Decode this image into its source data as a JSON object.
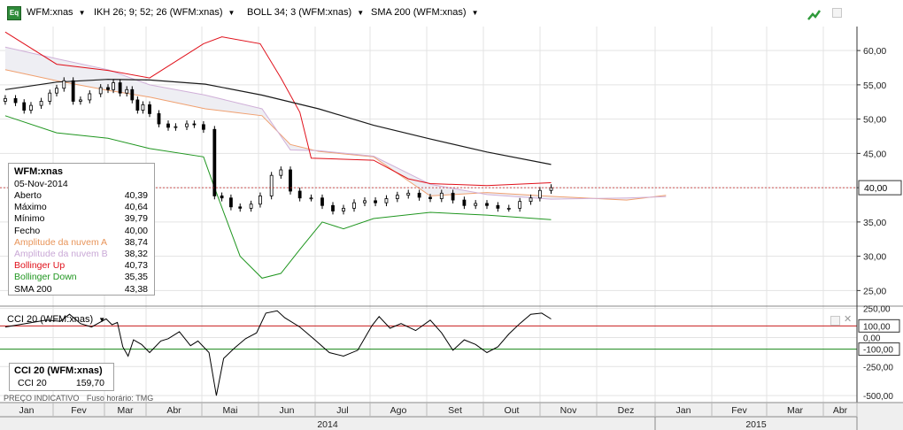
{
  "toolbar": {
    "badge": "Eq",
    "items": [
      {
        "label": "WFM:xnas"
      },
      {
        "label": "IKH 26; 9; 52; 26 (WFM:xnas)"
      },
      {
        "label": "BOLL 34; 3 (WFM:xnas)"
      },
      {
        "label": "SMA 200 (WFM:xnas)"
      }
    ],
    "icons": [
      "trend-icon",
      "maximize-icon"
    ]
  },
  "colors": {
    "candle_up": "#ffffff",
    "candle_down": "#000000",
    "bollinger_up": "#e0101a",
    "bollinger_down": "#209620",
    "cloud_a": "#f0a070",
    "cloud_b": "#d0b0d8",
    "cloud_fill": "#eeeef3",
    "sma": "#1a1a1a",
    "grid": "#e3e3e3",
    "price_line": "#c02020"
  },
  "info": {
    "title": "WFM:xnas",
    "date": "05-Nov-2014",
    "rows": [
      {
        "label": "Aberto",
        "value": "40,39",
        "color": "#000000"
      },
      {
        "label": "Máximo",
        "value": "40,64",
        "color": "#000000"
      },
      {
        "label": "Mínimo",
        "value": "39,79",
        "color": "#000000"
      },
      {
        "label": "Fecho",
        "value": "40,00",
        "color": "#000000"
      },
      {
        "label": "Amplitude da nuvem A",
        "value": "38,74",
        "color": "#e8955a"
      },
      {
        "label": "Amplitude da nuvem B",
        "value": "38,32",
        "color": "#c9a8d6"
      },
      {
        "label": "Bollinger Up",
        "value": "40,73",
        "color": "#e0101a"
      },
      {
        "label": "Bollinger Down",
        "value": "35,35",
        "color": "#209620"
      },
      {
        "label": "SMA 200",
        "value": "43,38",
        "color": "#000000"
      }
    ]
  },
  "cci": {
    "header": "CCI 20 (WFM:xnas)",
    "box_title": "CCI 20 (WFM:xnas)",
    "box_label": "CCI 20",
    "box_value": "159,70"
  },
  "footer": {
    "left": "PREÇO INDICATIVO",
    "right": "Fuso horário: TMG"
  },
  "chart_data": {
    "type": "candlestick",
    "price_axis": {
      "ylim": [
        23.5,
        63.5
      ],
      "ticks": [
        {
          "v": 25,
          "label": "25,00"
        },
        {
          "v": 30,
          "label": "30,00"
        },
        {
          "v": 35,
          "label": "35,00"
        },
        {
          "v": 40,
          "label": "40,00"
        },
        {
          "v": 45,
          "label": "45,00"
        },
        {
          "v": 50,
          "label": "50,00"
        },
        {
          "v": 55,
          "label": "55,00"
        },
        {
          "v": 60,
          "label": "60,00"
        }
      ],
      "last_price": {
        "v": 40.0,
        "label": "40,00"
      }
    },
    "cci_axis": {
      "ylim": [
        -560,
        270
      ],
      "ticks": [
        {
          "v": 250,
          "label": "250,00"
        },
        {
          "v": 100,
          "label": "100,00"
        },
        {
          "v": 0,
          "label": "0,00"
        },
        {
          "v": -100,
          "label": "-100,00"
        },
        {
          "v": -250,
          "label": "-250,00"
        },
        {
          "v": -500,
          "label": "-500,00"
        }
      ],
      "boxed": [
        100,
        -100
      ],
      "levels": [
        {
          "v": 100,
          "color": "#cc2020"
        },
        {
          "v": -100,
          "color": "#1a8a1a"
        }
      ]
    },
    "time_axis": {
      "months": [
        {
          "label": "Jan",
          "t": 0
        },
        {
          "label": "Fev",
          "t": 1
        },
        {
          "label": "Mar",
          "t": 2
        },
        {
          "label": "Abr",
          "t": 3
        },
        {
          "label": "Mai",
          "t": 4
        },
        {
          "label": "Jun",
          "t": 5
        },
        {
          "label": "Jul",
          "t": 6
        },
        {
          "label": "Ago",
          "t": 7
        },
        {
          "label": "Set",
          "t": 8
        },
        {
          "label": "Out",
          "t": 9
        },
        {
          "label": "Nov",
          "t": 10
        },
        {
          "label": "Dez",
          "t": 11
        },
        {
          "label": "Jan",
          "t": 12
        },
        {
          "label": "Fev",
          "t": 13
        },
        {
          "label": "Mar",
          "t": 14
        },
        {
          "label": "Abr",
          "t": 15
        }
      ],
      "years": [
        {
          "label": "2014",
          "t0": 0,
          "t1": 12
        },
        {
          "label": "2015",
          "t0": 12,
          "t1": 16
        }
      ]
    },
    "price": [
      [
        "2014-01-02",
        53.0
      ],
      [
        "2014-01-08",
        52.4
      ],
      [
        "2014-01-13",
        51.3
      ],
      [
        "2014-01-17",
        52.0
      ],
      [
        "2014-01-23",
        52.6
      ],
      [
        "2014-01-28",
        53.8
      ],
      [
        "2014-02-01",
        54.5
      ],
      [
        "2014-02-05",
        55.6
      ],
      [
        "2014-02-10",
        52.6
      ],
      [
        "2014-02-14",
        52.8
      ],
      [
        "2014-02-19",
        53.7
      ],
      [
        "2014-02-25",
        54.6
      ],
      [
        "2014-03-01",
        54.3
      ],
      [
        "2014-03-05",
        55.3
      ],
      [
        "2014-03-10",
        53.8
      ],
      [
        "2014-03-15",
        54.3
      ],
      [
        "2014-03-19",
        52.8
      ],
      [
        "2014-03-23",
        51.3
      ],
      [
        "2014-03-27",
        52.1
      ],
      [
        "2014-04-01",
        50.8
      ],
      [
        "2014-04-06",
        49.3
      ],
      [
        "2014-04-11",
        48.8
      ],
      [
        "2014-04-15",
        48.9
      ],
      [
        "2014-04-21",
        49.3
      ],
      [
        "2014-04-25",
        49.2
      ],
      [
        "2014-04-30",
        48.5
      ],
      [
        "2014-05-06",
        38.8
      ],
      [
        "2014-05-10",
        38.5
      ],
      [
        "2014-05-15",
        37.2
      ],
      [
        "2014-05-20",
        37.0
      ],
      [
        "2014-05-26",
        37.6
      ],
      [
        "2014-05-31",
        38.8
      ],
      [
        "2014-06-06",
        41.8
      ],
      [
        "2014-06-11",
        42.6
      ],
      [
        "2014-06-16",
        39.5
      ],
      [
        "2014-06-21",
        38.5
      ],
      [
        "2014-06-27",
        38.5
      ],
      [
        "2014-07-03",
        37.4
      ],
      [
        "2014-07-09",
        36.6
      ],
      [
        "2014-07-15",
        37.0
      ],
      [
        "2014-07-21",
        37.8
      ],
      [
        "2014-07-27",
        38.1
      ],
      [
        "2014-08-02",
        37.8
      ],
      [
        "2014-08-08",
        38.4
      ],
      [
        "2014-08-14",
        38.9
      ],
      [
        "2014-08-20",
        39.2
      ],
      [
        "2014-08-26",
        38.6
      ],
      [
        "2014-09-01",
        38.4
      ],
      [
        "2014-09-07",
        39.2
      ],
      [
        "2014-09-13",
        38.2
      ],
      [
        "2014-09-19",
        37.4
      ],
      [
        "2014-09-25",
        37.7
      ],
      [
        "2014-10-01",
        37.4
      ],
      [
        "2014-10-07",
        37.0
      ],
      [
        "2014-10-13",
        37.0
      ],
      [
        "2014-10-19",
        38.0
      ],
      [
        "2014-10-25",
        38.5
      ],
      [
        "2014-10-30",
        39.6
      ],
      [
        "2014-11-05",
        40.0
      ]
    ],
    "sma200": [
      [
        "2014-01-02",
        54.3
      ],
      [
        "2014-02-01",
        55.4
      ],
      [
        "2014-03-01",
        55.8
      ],
      [
        "2014-04-01",
        55.7
      ],
      [
        "2014-05-01",
        55.1
      ],
      [
        "2014-06-01",
        53.5
      ],
      [
        "2014-07-01",
        51.5
      ],
      [
        "2014-08-01",
        49.1
      ],
      [
        "2014-09-01",
        47.1
      ],
      [
        "2014-10-01",
        45.2
      ],
      [
        "2014-11-05",
        43.38
      ]
    ],
    "bollinger_up": [
      [
        "2014-01-02",
        62.7
      ],
      [
        "2014-02-01",
        58.0
      ],
      [
        "2014-03-01",
        57.1
      ],
      [
        "2014-04-01",
        56.0
      ],
      [
        "2014-04-30",
        61.0
      ],
      [
        "2014-05-10",
        62.0
      ],
      [
        "2014-05-31",
        61.0
      ],
      [
        "2014-06-11",
        56.0
      ],
      [
        "2014-06-21",
        51.0
      ],
      [
        "2014-06-27",
        44.3
      ],
      [
        "2014-08-01",
        44.0
      ],
      [
        "2014-08-20",
        41.3
      ],
      [
        "2014-09-01",
        40.6
      ],
      [
        "2014-10-01",
        40.3
      ],
      [
        "2014-11-05",
        40.73
      ]
    ],
    "bollinger_down": [
      [
        "2014-01-02",
        50.5
      ],
      [
        "2014-02-01",
        48.0
      ],
      [
        "2014-03-01",
        47.2
      ],
      [
        "2014-04-01",
        45.7
      ],
      [
        "2014-04-30",
        44.5
      ],
      [
        "2014-05-06",
        40.0
      ],
      [
        "2014-05-20",
        30.0
      ],
      [
        "2014-06-01",
        26.8
      ],
      [
        "2014-06-11",
        27.5
      ],
      [
        "2014-06-21",
        31.0
      ],
      [
        "2014-07-03",
        35.0
      ],
      [
        "2014-07-15",
        34.0
      ],
      [
        "2014-08-01",
        35.5
      ],
      [
        "2014-09-01",
        36.4
      ],
      [
        "2014-10-01",
        36.0
      ],
      [
        "2014-11-05",
        35.35
      ]
    ],
    "cloud_a": [
      [
        "2014-01-02",
        57.2
      ],
      [
        "2014-02-01",
        55.6
      ],
      [
        "2014-03-01",
        54.2
      ],
      [
        "2014-04-01",
        53.2
      ],
      [
        "2014-05-01",
        51.5
      ],
      [
        "2014-06-01",
        50.5
      ],
      [
        "2014-06-16",
        46.3
      ],
      [
        "2014-07-01",
        45.3
      ],
      [
        "2014-08-01",
        44.5
      ],
      [
        "2014-08-20",
        41.0
      ],
      [
        "2014-09-01",
        38.8
      ],
      [
        "2014-10-01",
        39.3
      ],
      [
        "2014-11-05",
        38.74
      ],
      [
        "2014-12-15",
        38.2
      ],
      [
        "2015-01-05",
        38.9
      ]
    ],
    "cloud_b": [
      [
        "2014-01-02",
        60.5
      ],
      [
        "2014-02-01",
        58.8
      ],
      [
        "2014-03-01",
        57.2
      ],
      [
        "2014-04-01",
        55.0
      ],
      [
        "2014-05-01",
        53.5
      ],
      [
        "2014-06-01",
        51.5
      ],
      [
        "2014-06-16",
        45.5
      ],
      [
        "2014-07-01",
        45.4
      ],
      [
        "2014-08-01",
        44.6
      ],
      [
        "2014-09-01",
        40.5
      ],
      [
        "2014-10-01",
        39.0
      ],
      [
        "2014-11-05",
        38.32
      ],
      [
        "2014-12-15",
        38.5
      ],
      [
        "2015-01-05",
        38.7
      ]
    ],
    "cci20": [
      [
        "2014-01-02",
        90
      ],
      [
        "2014-01-10",
        110
      ],
      [
        "2014-01-18",
        130
      ],
      [
        "2014-01-26",
        150
      ],
      [
        "2014-02-03",
        140
      ],
      [
        "2014-02-08",
        200
      ],
      [
        "2014-02-14",
        120
      ],
      [
        "2014-02-20",
        90
      ],
      [
        "2014-02-28",
        160
      ],
      [
        "2014-03-04",
        110
      ],
      [
        "2014-03-08",
        130
      ],
      [
        "2014-03-12",
        -80
      ],
      [
        "2014-03-16",
        -160
      ],
      [
        "2014-03-20",
        -20
      ],
      [
        "2014-03-26",
        -60
      ],
      [
        "2014-04-01",
        -130
      ],
      [
        "2014-04-07",
        -30
      ],
      [
        "2014-04-11",
        -10
      ],
      [
        "2014-04-17",
        50
      ],
      [
        "2014-04-23",
        -70
      ],
      [
        "2014-04-27",
        -30
      ],
      [
        "2014-05-03",
        -130
      ],
      [
        "2014-05-07",
        -500
      ],
      [
        "2014-05-11",
        -180
      ],
      [
        "2014-05-17",
        -90
      ],
      [
        "2014-05-23",
        -10
      ],
      [
        "2014-05-29",
        40
      ],
      [
        "2014-06-03",
        210
      ],
      [
        "2014-06-09",
        230
      ],
      [
        "2014-06-13",
        170
      ],
      [
        "2014-06-21",
        90
      ],
      [
        "2014-06-29",
        -20
      ],
      [
        "2014-07-07",
        -130
      ],
      [
        "2014-07-15",
        -160
      ],
      [
        "2014-07-23",
        -110
      ],
      [
        "2014-07-31",
        100
      ],
      [
        "2014-08-04",
        180
      ],
      [
        "2014-08-10",
        80
      ],
      [
        "2014-08-16",
        120
      ],
      [
        "2014-08-24",
        60
      ],
      [
        "2014-09-01",
        150
      ],
      [
        "2014-09-07",
        40
      ],
      [
        "2014-09-13",
        -110
      ],
      [
        "2014-09-19",
        -20
      ],
      [
        "2014-09-25",
        -60
      ],
      [
        "2014-10-01",
        -130
      ],
      [
        "2014-10-07",
        -80
      ],
      [
        "2014-10-13",
        30
      ],
      [
        "2014-10-19",
        120
      ],
      [
        "2014-10-25",
        200
      ],
      [
        "2014-10-31",
        210
      ],
      [
        "2014-11-05",
        159.7
      ]
    ]
  }
}
